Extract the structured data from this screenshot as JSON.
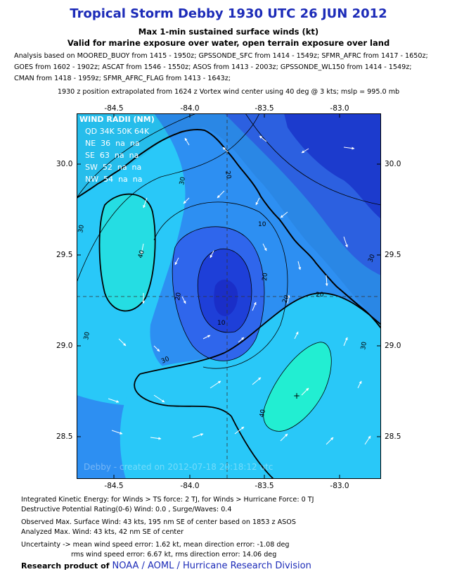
{
  "header": {
    "title": "Tropical Storm Debby 1930 UTC 26 JUN 2012",
    "subtitle1": "Max 1-min sustained surface winds (kt)",
    "subtitle2": "Valid for marine exposure over water, open terrain exposure over land",
    "analysis_lines": [
      "Analysis based on MOORED_BUOY from 1415 - 1950z; GPSSONDE_SFC from 1414 - 1549z; SFMR_AFRC from 1417 - 1650z;",
      "GOES from 1602 - 1902z; ASCAT from 1546 - 1550z; ASOS from 1413 - 2003z; GPSSONDE_WL150 from 1414 - 1549z;",
      "CMAN from 1418 - 1959z; SFMR_AFRC_FLAG from 1413 - 1643z;"
    ],
    "position_note": "1930 z position extrapolated from 1624 z Vortex wind center using 40 deg @ 3 kts; mslp = 995.0 mb"
  },
  "map": {
    "x_ticks": [
      "-84.5",
      "-84.0",
      "-83.5",
      "-83.0"
    ],
    "y_ticks": [
      "30.0",
      "29.5",
      "29.0",
      "28.5"
    ],
    "contour_labels": [
      "40",
      "30",
      "30",
      "30",
      "30",
      "20",
      "20",
      "20",
      "20",
      "10",
      "10",
      "30",
      "20",
      "30",
      "40"
    ],
    "center_marker": "+",
    "watermark": "Debby - created on 2012-07-18 20:18:12 utc",
    "colors": {
      "lt10": "#1e3fd8",
      "10_20": "#2f66ec",
      "20_30": "#2d8ff2",
      "30_40": "#29c8f8",
      "gt40": "#22eed2",
      "core": "#1a2ec8"
    }
  },
  "wind_radii": {
    "title": "WIND RADII (NM)",
    "header": "QD 34K 50K 64K",
    "rows": [
      "NE  36  na  na",
      "SE  63  na  na",
      "SW  52  na  na",
      "NW  54  na  na"
    ]
  },
  "footer": {
    "ike": "Integrated Kinetic Energy: for Winds > TS force: 2 TJ, for Winds > Hurricane Force: 0 TJ",
    "dpr": "Destructive Potential Rating(0-6)   Wind: 0.0 , Surge/Waves: 0.4",
    "observed": "Observed Max. Surface Wind: 43 kts, 195 nm SE of center based on 1853 z ASOS",
    "analyzed": "Analyzed Max. Wind: 43 kts, 42 nm  SE of center",
    "uncertainty1": "Uncertainty -> mean wind speed error: 1.62 kt, mean direction error:  -1.08 deg",
    "uncertainty2": "rms wind speed error: 6.67 kt, rms direction error: 14.06 deg",
    "credit_prefix": "Research product of",
    "credit_org": "NOAA  /  AOML  /  Hurricane Research Division"
  }
}
